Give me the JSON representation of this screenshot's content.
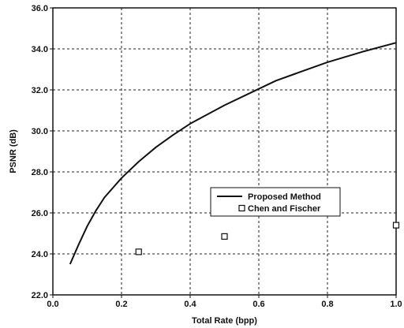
{
  "chart_data": {
    "type": "line",
    "title": "",
    "xlabel": "Total Rate (bpp)",
    "ylabel": "PSNR (dB)",
    "xlim": [
      0.0,
      1.0
    ],
    "ylim": [
      22.0,
      36.0
    ],
    "xticks": [
      "0.0",
      "0.2",
      "0.4",
      "0.6",
      "0.8",
      "1.0"
    ],
    "yticks": [
      "22.0",
      "24.0",
      "26.0",
      "28.0",
      "30.0",
      "32.0",
      "34.0",
      "36.0"
    ],
    "grid": true,
    "legend_position": "center-right",
    "series": [
      {
        "name": "Proposed Method",
        "style": "line",
        "color": "#111111",
        "x": [
          0.05,
          0.075,
          0.1,
          0.125,
          0.15,
          0.2,
          0.25,
          0.3,
          0.35,
          0.4,
          0.5,
          0.6,
          0.65,
          0.7,
          0.8,
          0.9,
          1.0
        ],
        "y": [
          23.5,
          24.45,
          25.35,
          26.1,
          26.75,
          27.7,
          28.5,
          29.2,
          29.8,
          30.35,
          31.25,
          32.05,
          32.45,
          32.75,
          33.35,
          33.85,
          34.3
        ]
      },
      {
        "name": "Chen and Fischer",
        "style": "marker",
        "marker": "square",
        "color": "#111111",
        "x": [
          0.25,
          0.5,
          1.0
        ],
        "y": [
          24.1,
          24.85,
          25.4
        ]
      }
    ]
  }
}
